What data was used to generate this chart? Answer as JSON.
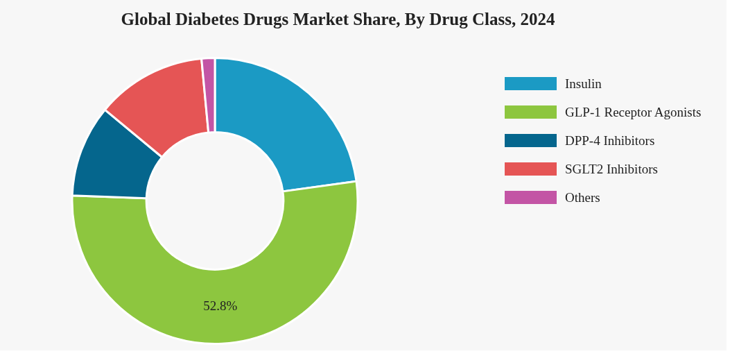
{
  "chart_data": {
    "type": "donut",
    "title": "Global Diabetes Drugs Market Share, By Drug Class, 2024",
    "categories": [
      "Insulin",
      "GLP-1 Receptor Agonists",
      "DPP-4 Inhibitors",
      "SGLT2 Inhibitors",
      "Others"
    ],
    "values": [
      22.8,
      52.8,
      10.4,
      12.5,
      1.5
    ],
    "colors": [
      "#1b9ac4",
      "#8dc63f",
      "#05668d",
      "#e55555",
      "#c355a5"
    ],
    "value_labels": [
      null,
      "52.8%",
      null,
      null,
      null
    ],
    "legend": "right"
  }
}
